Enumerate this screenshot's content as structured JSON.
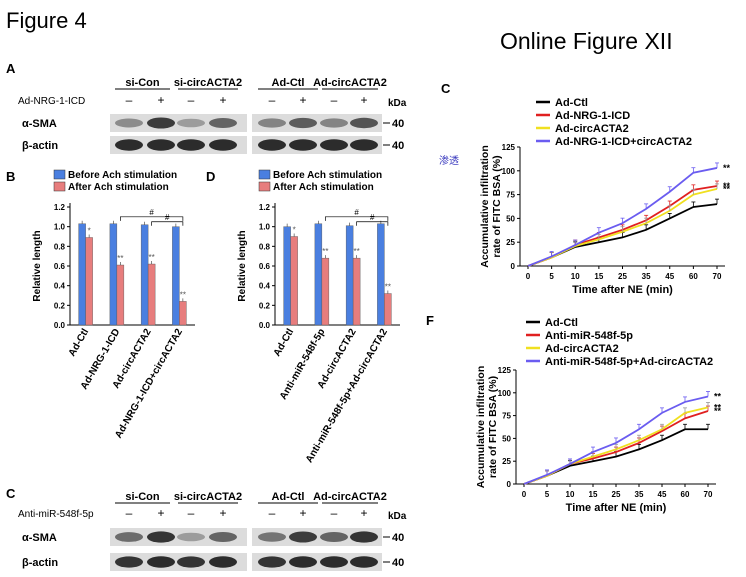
{
  "figure_title": "Figure 4",
  "online_title": "Online Figure XII",
  "stray_note": "渗透",
  "panel_letters": {
    "A": "A",
    "B": "B",
    "C_top": "C",
    "D": "D",
    "C_bottom": "C",
    "F": "F"
  },
  "blot_A": {
    "row_label": "Ad-NRG-1-ICD",
    "groups": [
      "si-Con",
      "si-circACTA2",
      "Ad-Ctl",
      "Ad-circACTA2"
    ],
    "signs": [
      "–",
      "+",
      "–",
      "+",
      "–",
      "+",
      "–",
      "+"
    ],
    "bands": [
      "α-SMA",
      "β-actin"
    ],
    "kda_label": "kDa",
    "markers": [
      "40",
      "40"
    ]
  },
  "blot_C": {
    "row_label": "Anti-miR-548f-5p",
    "groups": [
      "si-Con",
      "si-circACTA2",
      "Ad-Ctl",
      "Ad-circACTA2"
    ],
    "signs": [
      "–",
      "+",
      "–",
      "+",
      "–",
      "+",
      "–",
      "+"
    ],
    "bands": [
      "α-SMA",
      "β-actin"
    ],
    "kda_label": "kDa",
    "markers": [
      "40",
      "40"
    ]
  },
  "chart_data": [
    {
      "panel": "B",
      "type": "bar",
      "legend": [
        "Before Ach stimulation",
        "After Ach stimulation"
      ],
      "colors": [
        "#4a7fe0",
        "#e77d7d"
      ],
      "ylabel": "Relative length",
      "ylim": [
        0,
        1.2
      ],
      "yticks": [
        "0.0",
        "0.2",
        "0.4",
        "0.6",
        "0.8",
        "1.0",
        "1.2"
      ],
      "categories": [
        "Ad-Ctl",
        "Ad-NRG-1-ICD",
        "Ad-circACTA2",
        "Ad-NRG-1-ICD+circACTA2"
      ],
      "series": [
        {
          "name": "Before Ach stimulation",
          "values": [
            1.03,
            1.03,
            1.02,
            1.0
          ]
        },
        {
          "name": "After Ach stimulation",
          "values": [
            0.89,
            0.61,
            0.62,
            0.24
          ]
        }
      ],
      "annotations": [
        "*",
        "**",
        "**",
        "**"
      ],
      "brackets": [
        "#",
        "#"
      ]
    },
    {
      "panel": "D",
      "type": "bar",
      "legend": [
        "Before Ach stimulation",
        "After Ach stimulation"
      ],
      "colors": [
        "#4a7fe0",
        "#e77d7d"
      ],
      "ylabel": "Relative length",
      "ylim": [
        0,
        1.2
      ],
      "yticks": [
        "0.0",
        "0.2",
        "0.4",
        "0.6",
        "0.8",
        "1.0",
        "1.2"
      ],
      "categories": [
        "Ad-Ctl",
        "Anti-miR-548f-5p",
        "Ad-circACTA2",
        "Anti-miR-548f-5p+Ad-circACTA2"
      ],
      "series": [
        {
          "name": "Before Ach stimulation",
          "values": [
            1.0,
            1.03,
            1.01,
            1.03
          ]
        },
        {
          "name": "After Ach stimulation",
          "values": [
            0.9,
            0.68,
            0.68,
            0.32
          ]
        }
      ],
      "annotations": [
        "*",
        "**",
        "**",
        "**"
      ],
      "brackets": [
        "#",
        "#"
      ]
    },
    {
      "panel": "C",
      "type": "line",
      "x": [
        "0",
        "5",
        "10",
        "15",
        "25",
        "35",
        "45",
        "60",
        "70"
      ],
      "xlabel": "Time after NE (min)",
      "ylabel": "Accumulative infiltration rate of FITC BSA (%)",
      "ylim": [
        0,
        125
      ],
      "yticks": [
        "0",
        "25",
        "50",
        "75",
        "100",
        "125"
      ],
      "series": [
        {
          "name": "Ad-Ctl",
          "color": "#000000",
          "values": [
            0,
            9,
            20,
            25,
            30,
            38,
            50,
            62,
            65
          ]
        },
        {
          "name": "Ad-NRG-1-ICD",
          "color": "#e02020",
          "values": [
            0,
            9,
            22,
            30,
            38,
            48,
            63,
            80,
            84
          ]
        },
        {
          "name": "Ad-circACTA2",
          "color": "#f0e020",
          "values": [
            0,
            9,
            21,
            28,
            36,
            45,
            58,
            75,
            81
          ]
        },
        {
          "name": "Ad-NRG-1-ICD+circACTA2",
          "color": "#6a5cf0",
          "values": [
            0,
            10,
            22,
            35,
            45,
            60,
            78,
            98,
            103
          ]
        }
      ],
      "annotations": [
        "**",
        "**",
        "**"
      ]
    },
    {
      "panel": "F",
      "type": "line",
      "x": [
        "0",
        "5",
        "10",
        "15",
        "25",
        "35",
        "45",
        "60",
        "70"
      ],
      "xlabel": "Time after NE (min)",
      "ylabel": "Accumulative infiltration rate of FITC BSA (%)",
      "ylim": [
        0,
        125
      ],
      "yticks": [
        "0",
        "25",
        "50",
        "75",
        "100",
        "125"
      ],
      "series": [
        {
          "name": "Ad-Ctl",
          "color": "#000000",
          "values": [
            0,
            9,
            20,
            25,
            30,
            38,
            48,
            60,
            60
          ]
        },
        {
          "name": "Anti-miR-548f-5p",
          "color": "#e02020",
          "values": [
            0,
            9,
            22,
            28,
            35,
            45,
            58,
            72,
            80
          ]
        },
        {
          "name": "Ad-circACTA2",
          "color": "#f0e020",
          "values": [
            0,
            9,
            22,
            30,
            38,
            48,
            60,
            78,
            84
          ]
        },
        {
          "name": "Anti-miR-548f-5p+Ad-circACTA2",
          "color": "#6a5cf0",
          "values": [
            0,
            10,
            22,
            35,
            45,
            60,
            78,
            90,
            96
          ]
        }
      ],
      "annotations": [
        "**",
        "**",
        "**"
      ]
    }
  ]
}
